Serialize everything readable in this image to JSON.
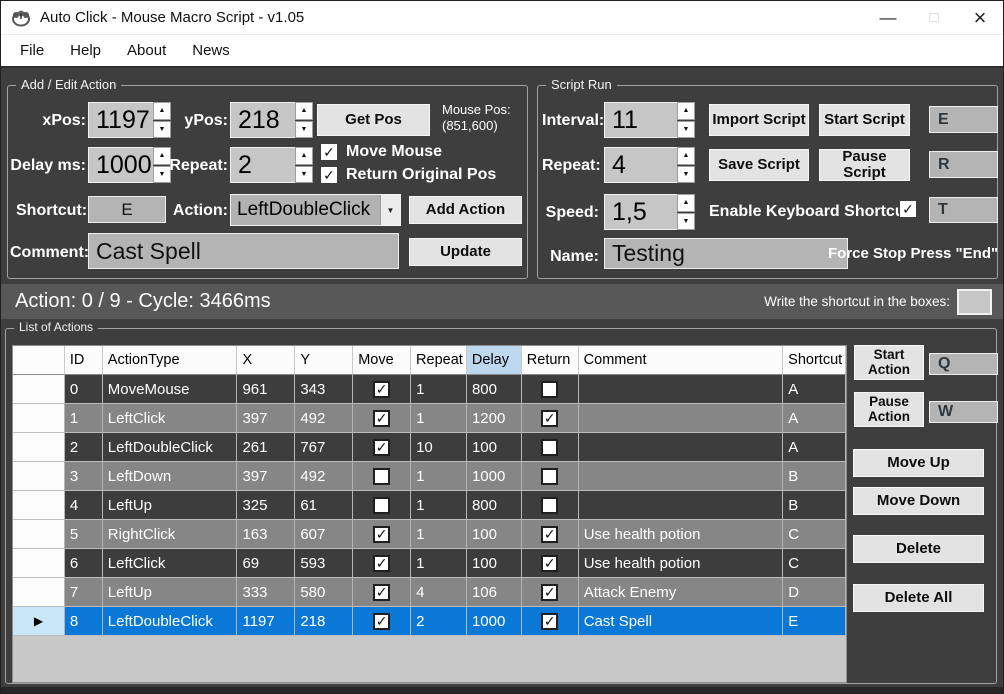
{
  "colors": {
    "selection_blue": "#0a78d6",
    "delay_header_blue": "#bdd7ee",
    "window_bg": "#3e3e3e"
  },
  "window": {
    "title": "Auto Click - Mouse Macro Script - v1.05",
    "controls": {
      "minimize": "—",
      "maximize": "□",
      "close": "×"
    }
  },
  "menu": {
    "items": [
      {
        "label": "File"
      },
      {
        "label": "Help"
      },
      {
        "label": "About"
      },
      {
        "label": "News"
      }
    ]
  },
  "add_edit_action": {
    "title": "Add / Edit Action",
    "xpos_label": "xPos:",
    "xpos_value": "1197",
    "ypos_label": "yPos:",
    "ypos_value": "218",
    "get_pos_button": "Get Pos",
    "mouse_pos_label": "Mouse Pos:",
    "mouse_pos_value": "(851,600)",
    "delay_label": "Delay ms:",
    "delay_value": "1000",
    "repeat_label": "Repeat:",
    "repeat_value": "2",
    "move_mouse_label": "Move Mouse",
    "move_mouse_checked": true,
    "return_original_label": "Return Original Pos",
    "return_original_checked": true,
    "shortcut_label": "Shortcut:",
    "shortcut_value": "E",
    "action_label": "Action:",
    "action_value": "LeftDoubleClick",
    "add_action_button": "Add Action",
    "comment_label": "Comment:",
    "comment_value": "Cast Spell",
    "update_button": "Update"
  },
  "script_run": {
    "title": "Script Run",
    "interval_label": "Interval:",
    "interval_value": "11",
    "import_script_button": "Import Script",
    "start_script_button": "Start Script",
    "start_script_key": "E",
    "repeat_label": "Repeat:",
    "repeat_value": "4",
    "save_script_button": "Save Script",
    "pause_script_button": "Pause Script",
    "pause_script_key": "R",
    "speed_label": "Speed:",
    "speed_value": "1,5",
    "enable_keyboard_label": "Enable Keyboard Shortcut",
    "enable_keyboard_checked": true,
    "enable_keyboard_key": "T",
    "name_label": "Name:",
    "name_value": "Testing",
    "force_stop_label": "Force Stop Press \"End\""
  },
  "status_bar": {
    "status_text": "Action: 0 / 9 - Cycle: 3466ms",
    "shortcut_hint": "Write the shortcut in the boxes:"
  },
  "list_of_actions": {
    "title": "List of Actions",
    "columns": [
      "",
      "ID",
      "ActionType",
      "X",
      "Y",
      "Move",
      "Repeat",
      "Delay",
      "Return",
      "Comment",
      "Shortcut"
    ],
    "highlighted_column": "Delay",
    "rows": [
      {
        "id": "0",
        "action_type": "MoveMouse",
        "x": "961",
        "y": "343",
        "move_checked": true,
        "repeat": "1",
        "delay": "800",
        "return_checked": false,
        "comment": "",
        "shortcut": "A",
        "selected": false
      },
      {
        "id": "1",
        "action_type": "LeftClick",
        "x": "397",
        "y": "492",
        "move_checked": true,
        "repeat": "1",
        "delay": "1200",
        "return_checked": true,
        "comment": "",
        "shortcut": "A",
        "selected": false
      },
      {
        "id": "2",
        "action_type": "LeftDoubleClick",
        "x": "261",
        "y": "767",
        "move_checked": true,
        "repeat": "10",
        "delay": "100",
        "return_checked": false,
        "comment": "",
        "shortcut": "A",
        "selected": false
      },
      {
        "id": "3",
        "action_type": "LeftDown",
        "x": "397",
        "y": "492",
        "move_checked": false,
        "repeat": "1",
        "delay": "1000",
        "return_checked": false,
        "comment": "",
        "shortcut": "B",
        "selected": false
      },
      {
        "id": "4",
        "action_type": "LeftUp",
        "x": "325",
        "y": "61",
        "move_checked": false,
        "repeat": "1",
        "delay": "800",
        "return_checked": false,
        "comment": "",
        "shortcut": "B",
        "selected": false
      },
      {
        "id": "5",
        "action_type": "RightClick",
        "x": "163",
        "y": "607",
        "move_checked": true,
        "repeat": "1",
        "delay": "100",
        "return_checked": true,
        "comment": "Use health potion",
        "shortcut": "C",
        "selected": false
      },
      {
        "id": "6",
        "action_type": "LeftClick",
        "x": "69",
        "y": "593",
        "move_checked": true,
        "repeat": "1",
        "delay": "100",
        "return_checked": true,
        "comment": "Use health potion",
        "shortcut": "C",
        "selected": false
      },
      {
        "id": "7",
        "action_type": "LeftUp",
        "x": "333",
        "y": "580",
        "move_checked": true,
        "repeat": "4",
        "delay": "106",
        "return_checked": true,
        "comment": "Attack Enemy",
        "shortcut": "D",
        "selected": false
      },
      {
        "id": "8",
        "action_type": "LeftDoubleClick",
        "x": "1197",
        "y": "218",
        "move_checked": true,
        "repeat": "2",
        "delay": "1000",
        "return_checked": true,
        "comment": "Cast Spell",
        "shortcut": "E",
        "selected": true
      }
    ],
    "side_buttons": {
      "start_action": "Start Action",
      "start_action_key": "Q",
      "pause_action": "Pause Action",
      "pause_action_key": "W",
      "move_up": "Move Up",
      "move_down": "Move Down",
      "delete": "Delete",
      "delete_all": "Delete All"
    }
  }
}
